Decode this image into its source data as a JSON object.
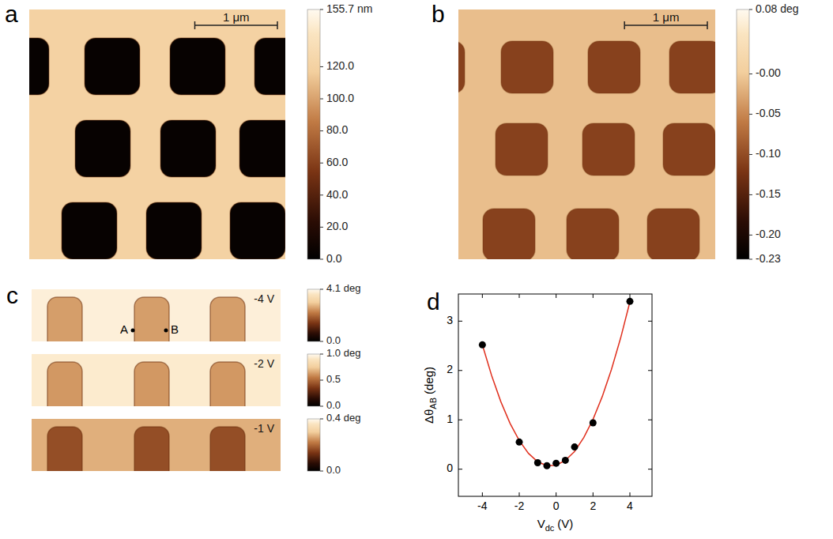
{
  "chart_data": [
    {
      "type": "image",
      "label": "a",
      "xlim": [
        0,
        3.1
      ],
      "scale_bar": {
        "length": 1,
        "label": "1 μm"
      },
      "surface_value": 120,
      "hole_value": 4,
      "colorbar": {
        "clim": [
          0,
          155.7
        ],
        "ticks": [
          {
            "value": 155.7,
            "label": "155.7 nm"
          },
          {
            "value": 120,
            "label": "120.0"
          },
          {
            "value": 100,
            "label": "100.0"
          },
          {
            "value": 80,
            "label": "80.0"
          },
          {
            "value": 60,
            "label": "60.0"
          },
          {
            "value": 40,
            "label": "40.0"
          },
          {
            "value": 20,
            "label": "20.0"
          },
          {
            "value": 0,
            "label": "0.0"
          }
        ]
      }
    },
    {
      "type": "image",
      "label": "b",
      "xlim": [
        0,
        3.1
      ],
      "scale_bar": {
        "length": 1,
        "label": "1 μm"
      },
      "surface_value": -0.01,
      "hole_value": -0.11,
      "colorbar": {
        "clim": [
          -0.23,
          0.08
        ],
        "ticks": [
          {
            "value": 0.08,
            "label": "0.08 deg"
          },
          {
            "value": 0,
            "label": "-0.00"
          },
          {
            "value": -0.05,
            "label": "-0.05"
          },
          {
            "value": -0.1,
            "label": "-0.10"
          },
          -0.15,
          {
            "value": -0.2,
            "label": "-0.20"
          },
          -0.23
        ]
      }
    },
    {
      "type": "image_strips",
      "label": "c",
      "points": [
        {
          "label": "A"
        },
        {
          "label": "B"
        }
      ],
      "strips": [
        {
          "label": "-4 V",
          "surface_value": 3.9,
          "hole_value": 2.6,
          "colorbar": {
            "clim": [
              0,
              4.1
            ],
            "ticks": [
              {
                "value": 4.1,
                "label": "4.1 deg"
              },
              {
                "value": 0,
                "label": "0.0"
              }
            ]
          }
        },
        {
          "label": "-2 V",
          "surface_value": 0.93,
          "hole_value": 0.62,
          "colorbar": {
            "clim": [
              0,
              1.0
            ],
            "ticks": [
              {
                "value": 1.0,
                "label": "1.0 deg"
              },
              0.5,
              {
                "value": 0,
                "label": "0.0"
              }
            ]
          }
        },
        {
          "label": "-1 V",
          "surface_value": 0.27,
          "hole_value": 0.17,
          "colorbar": {
            "clim": [
              0,
              0.4
            ],
            "ticks": [
              {
                "value": 0.4,
                "label": "0.4 deg"
              },
              {
                "value": 0,
                "label": "0.0"
              }
            ]
          }
        }
      ]
    },
    {
      "type": "scatter",
      "label": "d",
      "xlabel": {
        "text": "V",
        "sub": "dc",
        "unit": "(V)"
      },
      "ylabel": {
        "text": "Δθ",
        "sub": "AB",
        "unit": "(deg)"
      },
      "xlim": [
        -5.3,
        5.2
      ],
      "ylim": [
        -0.55,
        3.55
      ],
      "xticks": [
        -4,
        -2,
        0,
        2,
        4
      ],
      "yticks": [
        0,
        1,
        2,
        3
      ],
      "series": [
        {
          "type": "scatter",
          "color": "#000000",
          "marker": "circle",
          "x": [
            -4,
            -2,
            -1,
            -0.5,
            0,
            0.5,
            1,
            2,
            4
          ],
          "values": [
            2.52,
            0.55,
            0.13,
            0.07,
            0.12,
            0.18,
            0.45,
            0.94,
            3.4
          ]
        },
        {
          "type": "line",
          "color": "#e0301e",
          "line_style": "solid",
          "x": [
            -4,
            -3.5,
            -3,
            -2.5,
            -2,
            -1.5,
            -1,
            -0.5,
            0,
            0.5,
            1,
            1.5,
            2,
            2.5,
            3,
            3.5,
            4
          ],
          "values": [
            2.52,
            1.9,
            1.37,
            0.93,
            0.58,
            0.32,
            0.15,
            0.07,
            0.08,
            0.18,
            0.36,
            0.64,
            1.01,
            1.47,
            2.02,
            2.66,
            3.39
          ]
        }
      ]
    }
  ]
}
